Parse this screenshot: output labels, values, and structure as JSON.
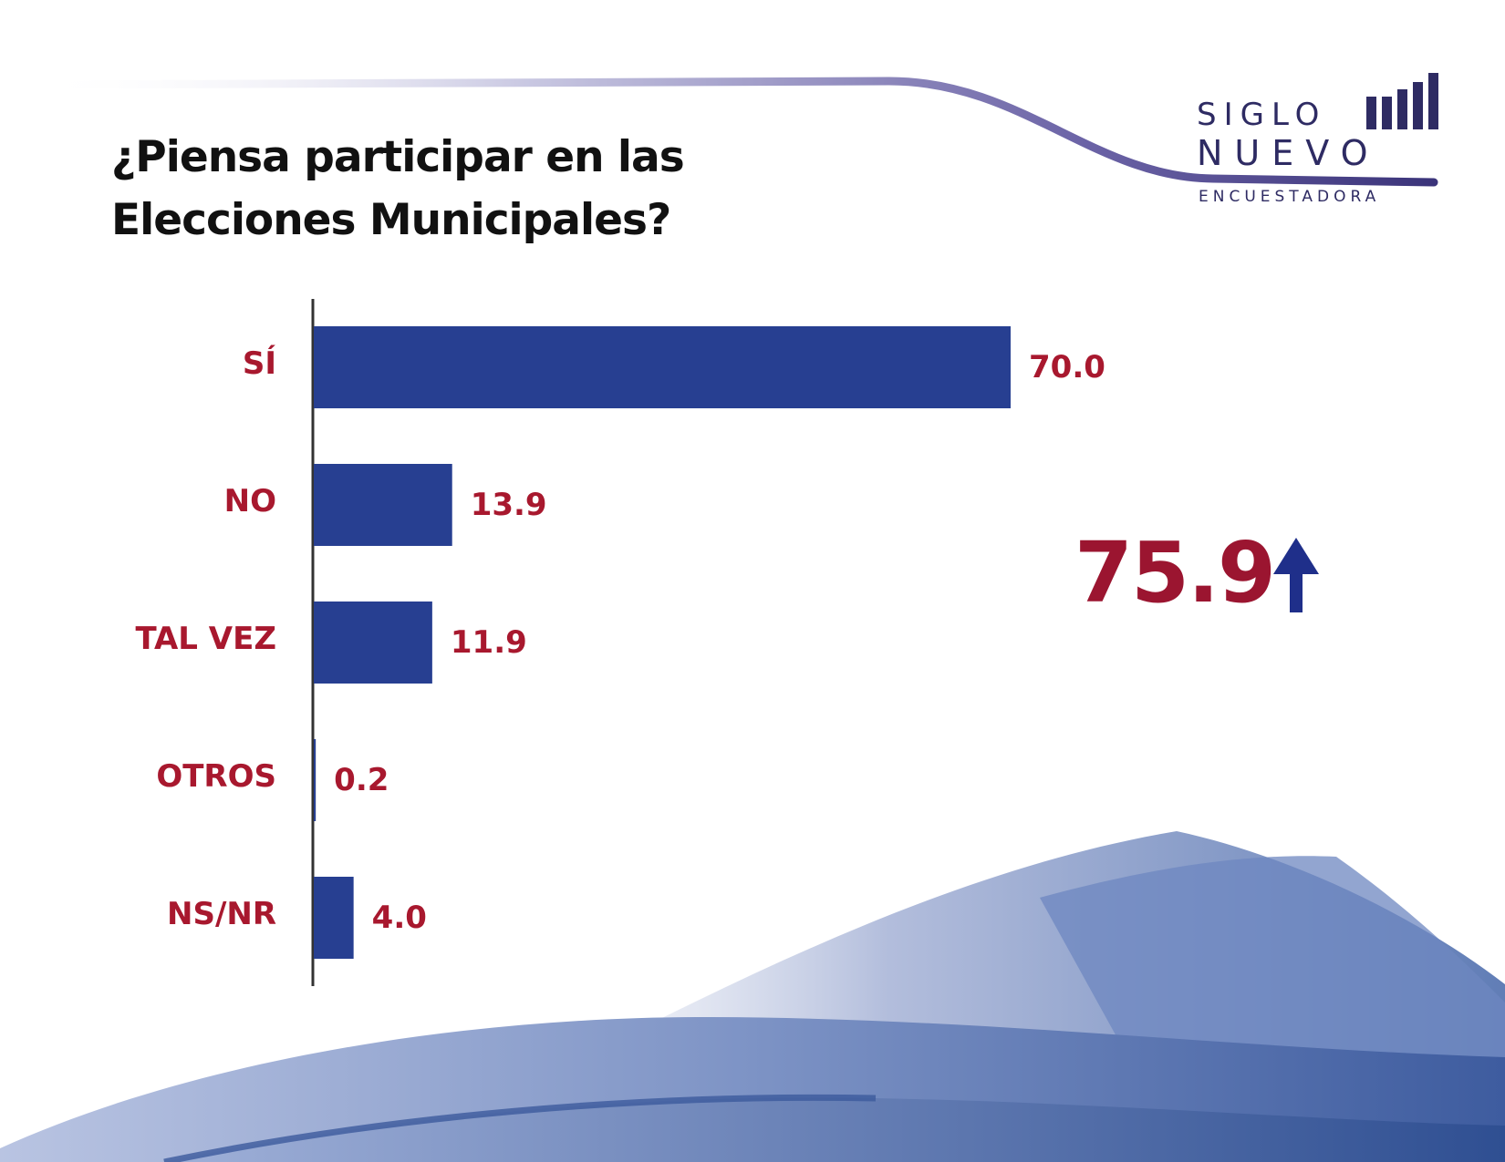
{
  "title": "¿Piensa participar en las Elecciones Municipales?",
  "logo": {
    "line1": "SIGLO",
    "line2": "NUEVO",
    "line3": "ENCUESTADORA"
  },
  "callout": {
    "value": "75.9",
    "icon": "up-arrow-icon",
    "color": "#9b1530",
    "arrow_color": "#1f2f8a"
  },
  "colors": {
    "bar": "#273f91",
    "label": "#a8182e"
  },
  "chart_data": {
    "type": "bar",
    "orientation": "horizontal",
    "title": "¿Piensa participar en las Elecciones Municipales?",
    "categories": [
      "SÍ",
      "NO",
      "TAL VEZ",
      "OTROS",
      "NS/NR"
    ],
    "values": [
      70.0,
      13.9,
      11.9,
      0.2,
      4.0
    ],
    "value_labels": [
      "70.0",
      "13.9",
      "11.9",
      "0.2",
      "4.0"
    ],
    "xlim": [
      0,
      70
    ],
    "grid": false,
    "legend": "none"
  }
}
